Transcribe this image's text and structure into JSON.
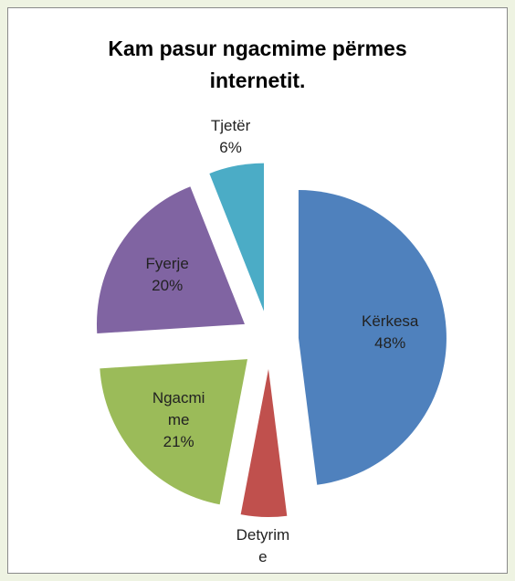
{
  "chart_data": {
    "type": "pie",
    "title": "Kam pasur ngacmime përmes internetit.",
    "categories": [
      "Kërkesa",
      "Detyrime",
      "Ngacmime",
      "Fyerje",
      "Tjetër"
    ],
    "values": [
      48,
      5,
      21,
      20,
      6
    ],
    "value_labels": [
      "48%",
      null,
      "21%",
      "20%",
      "6%"
    ],
    "colors": [
      "#4f81bd",
      "#c0504d",
      "#9bbb59",
      "#8064a2",
      "#4bacc6"
    ],
    "exploded": true
  }
}
